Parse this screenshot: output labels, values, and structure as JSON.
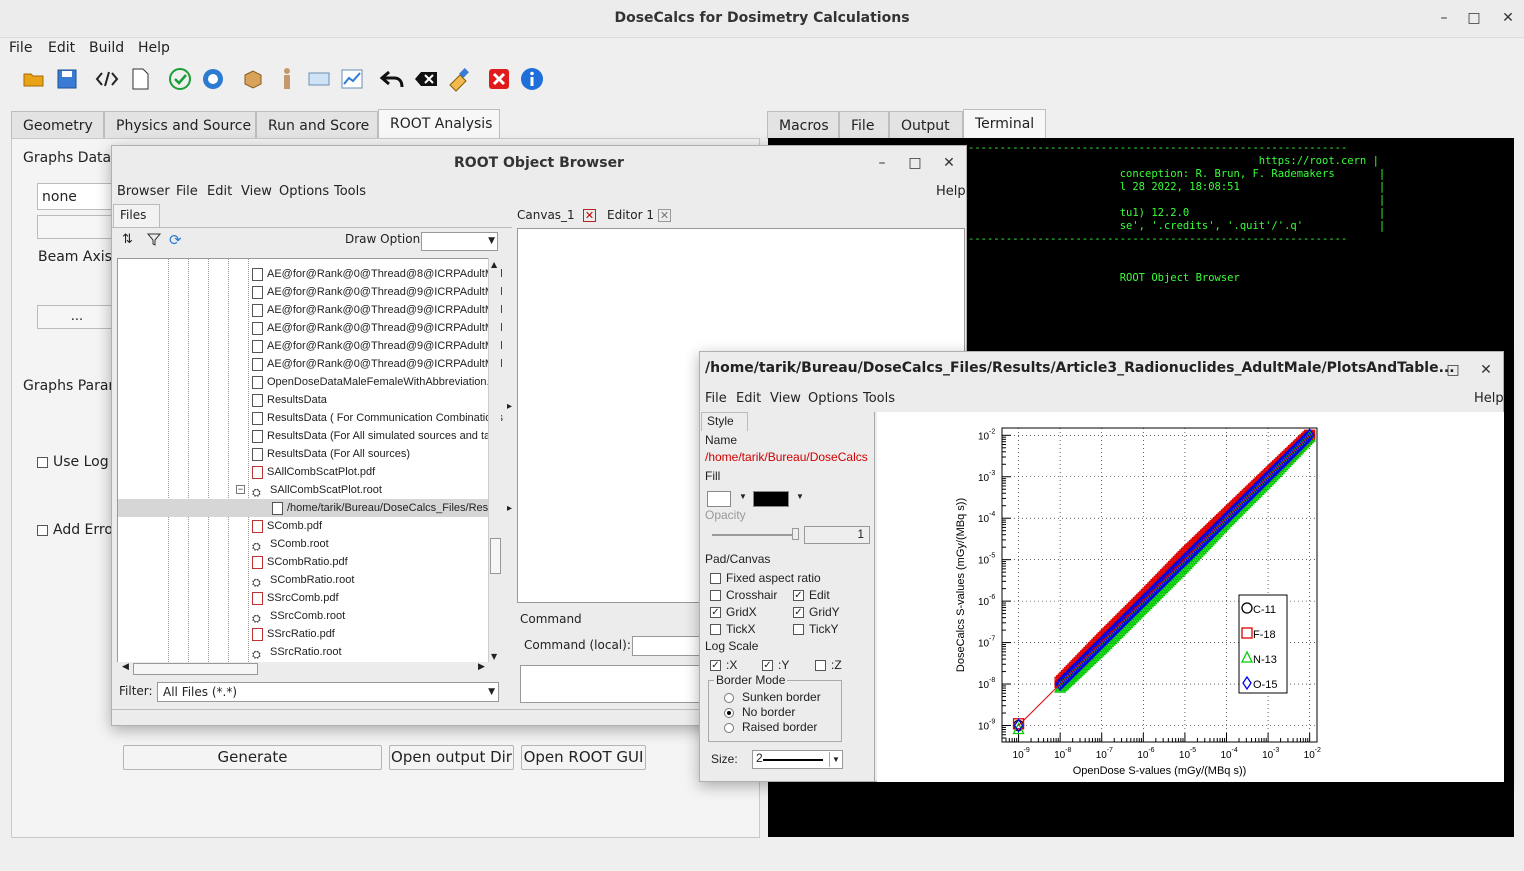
{
  "app": {
    "title": "DoseCalcs for Dosimetry Calculations",
    "min": "–",
    "max": "□",
    "close": "✕"
  },
  "menu": [
    "File",
    "Edit",
    "Build",
    "Help"
  ],
  "left_tabs": [
    "Geometry",
    "Physics and Source",
    "Run and Score",
    "ROOT Analysis"
  ],
  "right_tabs": [
    "Macros",
    "File",
    "Output",
    "Terminal"
  ],
  "left_panel": {
    "graphs_data": "Graphs Data",
    "none": "none",
    "beam_axis": "Beam Axis,",
    "dots": "...",
    "graphs_param": "Graphs Paran",
    "use_log": "Use Log",
    "add_err": "Add Erro"
  },
  "buttons": {
    "generate": "Generate",
    "open_output": "Open output Dir",
    "open_root": "Open ROOT GUI"
  },
  "terminal": [
    "------------------------------------------------------------",
    "                                              https://root.cern |",
    "                        conception: R. Brun, F. Rademakers       |",
    "                        l 28 2022, 18:08:51                      |",
    "                                                                 |",
    "                        tu1) 12.2.0                              |",
    "                        se', '.credits', '.quit'/'.q'            |",
    "------------------------------------------------------------",
    "",
    "",
    "                        ROOT Object Browser"
  ],
  "browser": {
    "title": "ROOT Object Browser",
    "menu": [
      "Browser",
      "File",
      "Edit",
      "View",
      "Options",
      "Tools"
    ],
    "help": "Help",
    "files_tab": "Files",
    "draw_option": "Draw Option:",
    "canvas_tab": "Canvas_1",
    "editor_tab": "Editor 1",
    "command_tab": "Command",
    "command_local": "Command (local):",
    "filter_label": "Filter:",
    "filter_value": "All Files (*.*)",
    "tree": [
      {
        "t": "AE@for@Rank@0@Thread@8@ICRPAdultMal",
        "k": "file"
      },
      {
        "t": "AE@for@Rank@0@Thread@9@ICRPAdultMal",
        "k": "file"
      },
      {
        "t": "AE@for@Rank@0@Thread@9@ICRPAdultMal",
        "k": "file"
      },
      {
        "t": "AE@for@Rank@0@Thread@9@ICRPAdultMal",
        "k": "file"
      },
      {
        "t": "AE@for@Rank@0@Thread@9@ICRPAdultMal",
        "k": "file"
      },
      {
        "t": "AE@for@Rank@0@Thread@9@ICRPAdultMal",
        "k": "file"
      },
      {
        "t": "OpenDoseDataMaleFemaleWithAbbreviation.txt",
        "k": "file"
      },
      {
        "t": "ResultsData",
        "k": "file"
      },
      {
        "t": "ResultsData ( For Communication Combinations",
        "k": "file"
      },
      {
        "t": "ResultsData (For All simulated sources and targ",
        "k": "file"
      },
      {
        "t": "ResultsData (For All sources)",
        "k": "file"
      },
      {
        "t": "SAllCombScatPlot.pdf",
        "k": "pdf"
      },
      {
        "t": "SAllCombScatPlot.root",
        "k": "root"
      },
      {
        "t": "/home/tarik/Bureau/DoseCalcs_Files/Result",
        "k": "sel"
      },
      {
        "t": "SComb.pdf",
        "k": "pdf"
      },
      {
        "t": "SComb.root",
        "k": "root"
      },
      {
        "t": "SCombRatio.pdf",
        "k": "pdf"
      },
      {
        "t": "SCombRatio.root",
        "k": "root"
      },
      {
        "t": "SSrcComb.pdf",
        "k": "pdf"
      },
      {
        "t": "SSrcComb.root",
        "k": "root"
      },
      {
        "t": "SSrcRatio.pdf",
        "k": "pdf"
      },
      {
        "t": "SSrcRatio.root",
        "k": "root"
      }
    ]
  },
  "canvas": {
    "title": "/home/tarik/Bureau/DoseCalcs_Files/Results/Article3_Radionuclides_AdultMale/PlotsAndTable...",
    "menu": [
      "File",
      "Edit",
      "View",
      "Options",
      "Tools"
    ],
    "help": "Help",
    "style_tab": "Style",
    "name_label": "Name",
    "name_value": "/home/tarik/Bureau/DoseCalcs",
    "fill": "Fill",
    "opacity": "Opacity",
    "opacity_value": "1",
    "pad_canvas": "Pad/Canvas",
    "fixed_aspect": "Fixed aspect ratio",
    "crosshair": "Crosshair",
    "edit": "Edit",
    "gridx": "GridX",
    "gridy": "GridY",
    "tickx": "TickX",
    "ticky": "TickY",
    "log_scale": "Log Scale",
    "lx": ":X",
    "ly": ":Y",
    "lz": ":Z",
    "border_mode": "Border Mode",
    "sunken": "Sunken border",
    "noborder": "No border",
    "raised": "Raised border",
    "size_label": "Size:",
    "size_value": "2",
    "checks": {
      "fixed": false,
      "crosshair": false,
      "edit": true,
      "gridx": true,
      "gridy": true,
      "tickx": false,
      "ticky": false,
      "logx": true,
      "logy": true,
      "logz": false
    }
  },
  "chart_data": {
    "type": "scatter",
    "xlabel": "OpenDose S-values (mGy/(MBq s))",
    "ylabel": "DoseCalcs S-values (mGy/(MBq s))",
    "xscale": "log",
    "yscale": "log",
    "xlim": [
      4e-10,
      0.015
    ],
    "ylim": [
      4e-10,
      0.015
    ],
    "x_ticks": [
      "10",
      "10",
      "10",
      "10",
      "10",
      "10",
      "10",
      "10"
    ],
    "x_tick_exponents": [
      "-9",
      "-8",
      "-7",
      "-6",
      "-5",
      "-4",
      "-3",
      "-2"
    ],
    "y_ticks": [
      "10",
      "10",
      "10",
      "10",
      "10",
      "10",
      "10",
      "10"
    ],
    "y_tick_exponents": [
      "-9",
      "-8",
      "-7",
      "-6",
      "-5",
      "-4",
      "-3",
      "-2"
    ],
    "legend_position": "right",
    "grid": true,
    "series": [
      {
        "name": "C-11",
        "marker": "circle",
        "color": "#000000",
        "points": [
          [
            1e-09,
            1e-09
          ],
          [
            1e-08,
            1e-08
          ],
          [
            1e-07,
            1e-07
          ],
          [
            1e-06,
            1e-06
          ],
          [
            1e-05,
            1e-05
          ],
          [
            0.0001,
            0.0001
          ],
          [
            0.001,
            0.001
          ],
          [
            0.01,
            0.01
          ]
        ]
      },
      {
        "name": "F-18",
        "marker": "square",
        "color": "#e00000",
        "points": [
          [
            1e-09,
            1.1e-09
          ],
          [
            1e-08,
            1.1e-08
          ],
          [
            1e-07,
            1.2e-07
          ],
          [
            1e-06,
            1.2e-06
          ],
          [
            1e-05,
            1.3e-05
          ],
          [
            0.0001,
            0.00012
          ],
          [
            0.001,
            0.0011
          ],
          [
            0.01,
            0.01
          ]
        ]
      },
      {
        "name": "N-13",
        "marker": "triangle",
        "color": "#00cc00",
        "points": [
          [
            1e-09,
            8e-10
          ],
          [
            1e-08,
            8e-09
          ],
          [
            1e-07,
            7e-08
          ],
          [
            1e-06,
            7e-07
          ],
          [
            1e-05,
            7e-06
          ],
          [
            0.0001,
            8e-05
          ],
          [
            0.001,
            0.0008
          ],
          [
            0.01,
            0.009
          ]
        ]
      },
      {
        "name": "O-15",
        "marker": "diamond",
        "color": "#0000ee",
        "points": [
          [
            1e-09,
            1e-09
          ],
          [
            1e-08,
            1e-08
          ],
          [
            1e-07,
            1e-07
          ],
          [
            1e-06,
            1e-06
          ],
          [
            1e-05,
            1e-05
          ],
          [
            0.0001,
            0.0001
          ],
          [
            0.001,
            0.001
          ],
          [
            0.01,
            0.01
          ]
        ]
      }
    ]
  }
}
